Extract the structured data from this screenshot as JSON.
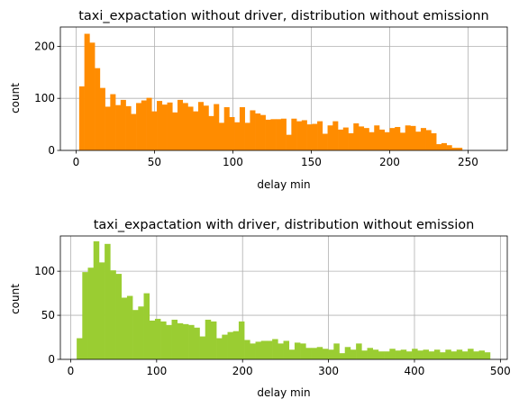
{
  "chart_data": [
    {
      "type": "bar",
      "title": "taxi_expactation without driver, distribution without emissionn",
      "xlabel": "delay min",
      "ylabel": "count",
      "xlim": [
        -10,
        275
      ],
      "ylim": [
        0,
        237
      ],
      "xticks": [
        0,
        50,
        100,
        150,
        200,
        250
      ],
      "yticks": [
        0,
        100,
        200
      ],
      "grid": true,
      "color": "#ff8c00",
      "bin_start": 2,
      "bin_width": 3.3,
      "values": [
        123,
        224,
        207,
        158,
        120,
        84,
        108,
        87,
        97,
        85,
        70,
        91,
        96,
        101,
        75,
        95,
        88,
        92,
        73,
        97,
        91,
        84,
        75,
        93,
        86,
        66,
        89,
        53,
        83,
        64,
        54,
        83,
        53,
        77,
        71,
        68,
        59,
        60,
        60,
        61,
        30,
        61,
        56,
        58,
        50,
        51,
        56,
        32,
        48,
        56,
        40,
        44,
        33,
        52,
        46,
        43,
        35,
        48,
        40,
        35,
        43,
        45,
        34,
        48,
        47,
        36,
        43,
        39,
        33,
        12,
        14,
        10,
        5,
        5
      ]
    },
    {
      "type": "bar",
      "title": "taxi_expactation with driver, distribution without emission",
      "xlabel": "delay min",
      "ylabel": "count",
      "xlim": [
        -12,
        508
      ],
      "ylim": [
        0,
        140
      ],
      "xticks": [
        0,
        100,
        200,
        300,
        400,
        500
      ],
      "yticks": [
        0,
        50,
        100
      ],
      "grid": true,
      "color": "#9acd32",
      "bin_start": 7,
      "bin_width": 6.5,
      "values": [
        24,
        99,
        104,
        134,
        110,
        131,
        101,
        97,
        70,
        72,
        56,
        60,
        75,
        44,
        46,
        43,
        39,
        45,
        41,
        40,
        39,
        36,
        26,
        45,
        43,
        24,
        28,
        31,
        32,
        43,
        22,
        18,
        20,
        21,
        21,
        23,
        18,
        21,
        11,
        19,
        18,
        13,
        13,
        14,
        12,
        11,
        18,
        7,
        14,
        11,
        18,
        10,
        13,
        11,
        9,
        9,
        12,
        10,
        11,
        9,
        12,
        10,
        11,
        9,
        11,
        8,
        11,
        9,
        11,
        9,
        12,
        9,
        10,
        8
      ]
    }
  ]
}
